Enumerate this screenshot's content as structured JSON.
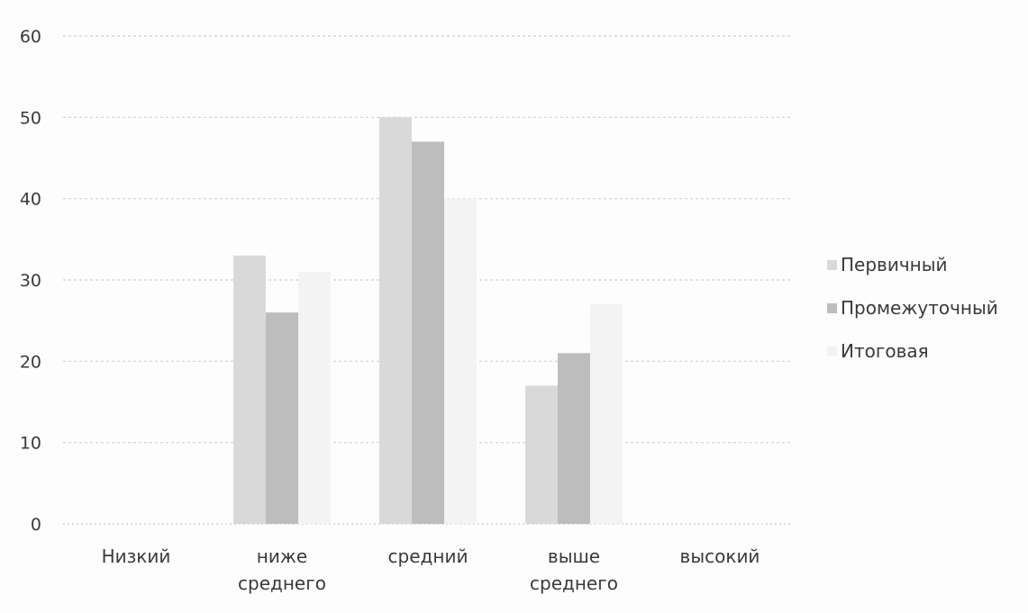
{
  "chart_data": {
    "type": "bar",
    "categories": [
      [
        "Низкий"
      ],
      [
        "ниже",
        "среднего"
      ],
      [
        "средний"
      ],
      [
        "выше",
        "среднего"
      ],
      [
        "высокий"
      ]
    ],
    "series": [
      {
        "name": "Первичный",
        "values": [
          0,
          33,
          50,
          17,
          0
        ],
        "color": "#d9d9d9"
      },
      {
        "name": "Промежуточный",
        "values": [
          0,
          26,
          47,
          21,
          0
        ],
        "color": "#bdbdbd"
      },
      {
        "name": "Итоговая",
        "values": [
          0,
          31,
          40,
          27,
          0
        ],
        "color": "#f3f3f3"
      }
    ],
    "ylim": [
      0,
      60
    ],
    "yticks": [
      0,
      10,
      20,
      30,
      40,
      50,
      60
    ],
    "grid": true,
    "legend": "right"
  }
}
